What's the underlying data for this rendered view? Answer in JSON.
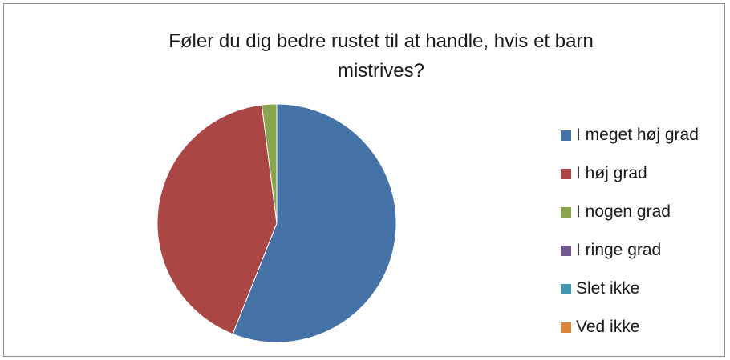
{
  "chart_data": {
    "type": "pie",
    "title": "Føler du dig bedre rustet til at handle, hvis et barn mistrives?",
    "categories": [
      "I meget høj grad",
      "I høj grad",
      "I nogen grad",
      "I ringe grad",
      "Slet ikke",
      "Ved ikke"
    ],
    "values": [
      56,
      42,
      2,
      0,
      0,
      0
    ],
    "colors": [
      "#4572a7",
      "#aa4643",
      "#89a54e",
      "#71588f",
      "#4198af",
      "#db843d"
    ],
    "legend_position": "right"
  }
}
